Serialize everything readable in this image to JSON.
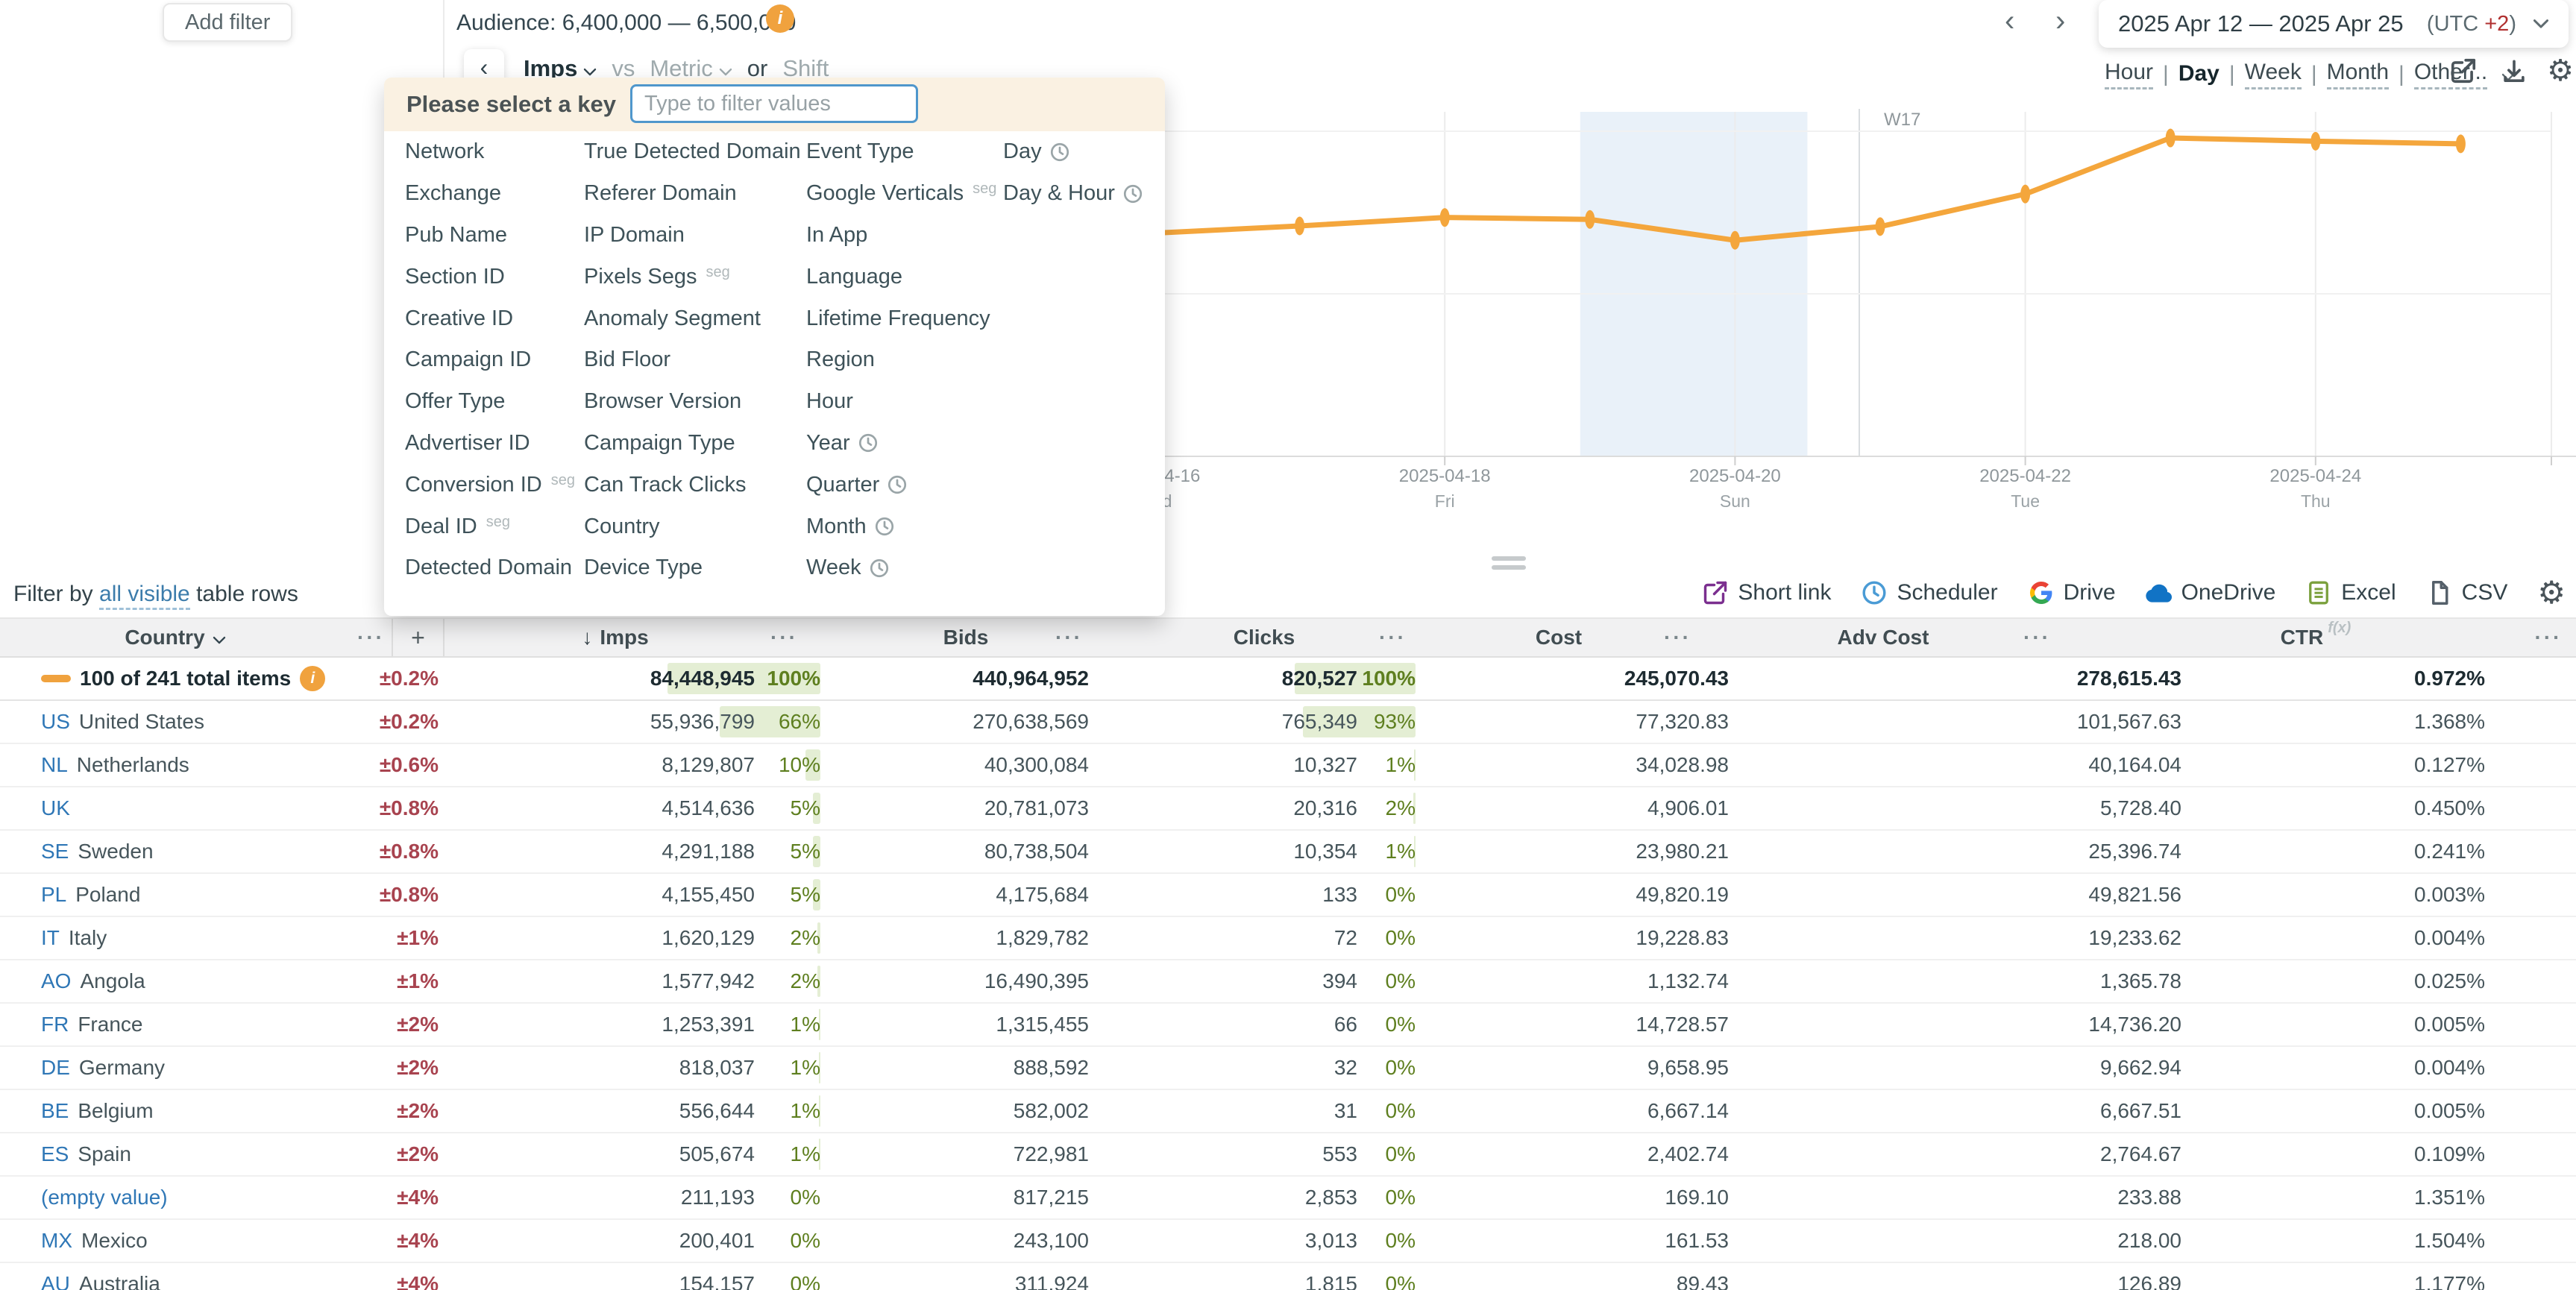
{
  "topbar": {
    "add_filter": "Add filter",
    "audience": "Audience: 6,400,000 — 6,500,000",
    "info_icon": "i",
    "prev": "‹",
    "next": "›",
    "date_range": "2025 Apr 12 — 2025 Apr 25",
    "utc_prefix": "(UTC ",
    "utc_offset": "+2",
    "utc_suffix": ")"
  },
  "controls": {
    "back": "‹",
    "primary_metric": "Imps",
    "vs": "vs",
    "secondary_metric": "Metric",
    "or": "or",
    "shift": "Shift",
    "granularity": {
      "items": [
        "Hour",
        "Day",
        "Week",
        "Month",
        "Other..."
      ],
      "active": "Day"
    }
  },
  "key_picker": {
    "title": "Please select a key",
    "placeholder": "Type to filter values",
    "seg_tag": "seg",
    "columns": [
      [
        {
          "label": "Network"
        },
        {
          "label": "Exchange"
        },
        {
          "label": "Pub Name"
        },
        {
          "label": "Section ID"
        },
        {
          "label": "Creative ID"
        },
        {
          "label": "Campaign ID"
        },
        {
          "label": "Offer Type"
        },
        {
          "label": "Advertiser ID"
        },
        {
          "label": "Conversion ID",
          "seg": true
        },
        {
          "label": "Deal ID",
          "seg": true
        },
        {
          "label": "Detected Domain"
        }
      ],
      [
        {
          "label": "True Detected Domain"
        },
        {
          "label": "Referer Domain"
        },
        {
          "label": "IP Domain"
        },
        {
          "label": "Pixels Segs",
          "seg": true
        },
        {
          "label": "Anomaly Segment"
        },
        {
          "label": "Bid Floor"
        },
        {
          "label": "Browser Version"
        },
        {
          "label": "Campaign Type"
        },
        {
          "label": "Can Track Clicks"
        },
        {
          "label": "Country"
        },
        {
          "label": "Device Type"
        }
      ],
      [
        {
          "label": "Event Type"
        },
        {
          "label": "Google Verticals",
          "seg": true
        },
        {
          "label": "In App"
        },
        {
          "label": "Language"
        },
        {
          "label": "Lifetime Frequency"
        },
        {
          "label": "Region"
        },
        {
          "label": "Hour"
        },
        {
          "label": "Year",
          "clock": true
        },
        {
          "label": "Quarter",
          "clock": true
        },
        {
          "label": "Month",
          "clock": true
        },
        {
          "label": "Week",
          "clock": true
        }
      ],
      [
        {
          "label": "Day",
          "clock": true
        },
        {
          "label": "Day & Hour",
          "clock": true
        }
      ]
    ]
  },
  "chart_data": {
    "type": "line",
    "series": [
      {
        "name": "Imps",
        "values_millions_est": [
          5.47,
          5.58,
          5.71,
          5.68,
          5.36,
          5.57,
          6.07,
          6.93,
          6.88,
          6.84
        ]
      }
    ],
    "x": [
      "2025-04-16",
      "2025-04-17",
      "2025-04-18",
      "2025-04-19",
      "2025-04-20",
      "2025-04-21",
      "2025-04-22",
      "2025-04-23",
      "2025-04-24",
      "2025-04-25"
    ],
    "x_ticks": [
      {
        "date": "2025-04-16",
        "dow": "Wed"
      },
      {
        "date": "2025-04-18",
        "dow": "Fri"
      },
      {
        "date": "2025-04-20",
        "dow": "Sun"
      },
      {
        "date": "2025-04-22",
        "dow": "Tue"
      },
      {
        "date": "2025-04-24",
        "dow": "Thu"
      }
    ],
    "week_annotation": "W17",
    "weekend_band": [
      "2025-04-19",
      "2025-04-20"
    ],
    "ylim_millions": [
      4.5,
      7.5
    ],
    "grid": true,
    "legend": false
  },
  "splitter_handle": "=",
  "filter_row": {
    "prefix": "Filter by",
    "link": "all visible",
    "suffix": "table rows"
  },
  "export_row": {
    "items": [
      {
        "label": "Short link",
        "icon": "external-link-icon",
        "color": "#7b2f8f"
      },
      {
        "label": "Scheduler",
        "icon": "clock-icon",
        "color": "#4a9bd5"
      },
      {
        "label": "Drive",
        "icon": "google-drive-icon",
        "color": "#4285F4"
      },
      {
        "label": "OneDrive",
        "icon": "onedrive-cloud-icon",
        "color": "#1173c5"
      },
      {
        "label": "Excel",
        "icon": "excel-icon",
        "color": "#7aa03c"
      },
      {
        "label": "CSV",
        "icon": "csv-file-icon",
        "color": "#55606a"
      }
    ]
  },
  "table": {
    "headers": {
      "country": "Country",
      "menu": "···",
      "plus": "+",
      "sort": "↓",
      "imps": "Imps",
      "bids": "Bids",
      "clicks": "Clicks",
      "cost": "Cost",
      "adv_cost": "Adv Cost",
      "ctr": "CTR",
      "ctr_sup": "f(x)"
    },
    "rows": [
      {
        "total": true,
        "code": "",
        "name": "100 of 241 total items",
        "err": "±0.2%",
        "imps": "84,448,945",
        "imps_pct": "100%",
        "bids": "440,964,952",
        "clicks": "820,527",
        "clicks_pct": "100%",
        "cost": "245,070.43",
        "adv_cost": "278,615.43",
        "ctr": "0.972%"
      },
      {
        "code": "US",
        "name": "United States",
        "err": "±0.2%",
        "imps": "55,936,799",
        "imps_pct": "66%",
        "bids": "270,638,569",
        "clicks": "765,349",
        "clicks_pct": "93%",
        "cost": "77,320.83",
        "adv_cost": "101,567.63",
        "ctr": "1.368%"
      },
      {
        "code": "NL",
        "name": "Netherlands",
        "err": "±0.6%",
        "imps": "8,129,807",
        "imps_pct": "10%",
        "bids": "40,300,084",
        "clicks": "10,327",
        "clicks_pct": "1%",
        "cost": "34,028.98",
        "adv_cost": "40,164.04",
        "ctr": "0.127%"
      },
      {
        "code": "UK",
        "name": "",
        "err": "±0.8%",
        "imps": "4,514,636",
        "imps_pct": "5%",
        "bids": "20,781,073",
        "clicks": "20,316",
        "clicks_pct": "2%",
        "cost": "4,906.01",
        "adv_cost": "5,728.40",
        "ctr": "0.450%"
      },
      {
        "code": "SE",
        "name": "Sweden",
        "err": "±0.8%",
        "imps": "4,291,188",
        "imps_pct": "5%",
        "bids": "80,738,504",
        "clicks": "10,354",
        "clicks_pct": "1%",
        "cost": "23,980.21",
        "adv_cost": "25,396.74",
        "ctr": "0.241%"
      },
      {
        "code": "PL",
        "name": "Poland",
        "err": "±0.8%",
        "imps": "4,155,450",
        "imps_pct": "5%",
        "bids": "4,175,684",
        "clicks": "133",
        "clicks_pct": "0%",
        "cost": "49,820.19",
        "adv_cost": "49,821.56",
        "ctr": "0.003%"
      },
      {
        "code": "IT",
        "name": "Italy",
        "err": "±1%",
        "imps": "1,620,129",
        "imps_pct": "2%",
        "bids": "1,829,782",
        "clicks": "72",
        "clicks_pct": "0%",
        "cost": "19,228.83",
        "adv_cost": "19,233.62",
        "ctr": "0.004%"
      },
      {
        "code": "AO",
        "name": "Angola",
        "err": "±1%",
        "imps": "1,577,942",
        "imps_pct": "2%",
        "bids": "16,490,395",
        "clicks": "394",
        "clicks_pct": "0%",
        "cost": "1,132.74",
        "adv_cost": "1,365.78",
        "ctr": "0.025%"
      },
      {
        "code": "FR",
        "name": "France",
        "err": "±2%",
        "imps": "1,253,391",
        "imps_pct": "1%",
        "bids": "1,315,455",
        "clicks": "66",
        "clicks_pct": "0%",
        "cost": "14,728.57",
        "adv_cost": "14,736.20",
        "ctr": "0.005%"
      },
      {
        "code": "DE",
        "name": "Germany",
        "err": "±2%",
        "imps": "818,037",
        "imps_pct": "1%",
        "bids": "888,592",
        "clicks": "32",
        "clicks_pct": "0%",
        "cost": "9,658.95",
        "adv_cost": "9,662.94",
        "ctr": "0.004%"
      },
      {
        "code": "BE",
        "name": "Belgium",
        "err": "±2%",
        "imps": "556,644",
        "imps_pct": "1%",
        "bids": "582,002",
        "clicks": "31",
        "clicks_pct": "0%",
        "cost": "6,667.14",
        "adv_cost": "6,667.51",
        "ctr": "0.005%"
      },
      {
        "code": "ES",
        "name": "Spain",
        "err": "±2%",
        "imps": "505,674",
        "imps_pct": "1%",
        "bids": "722,981",
        "clicks": "553",
        "clicks_pct": "0%",
        "cost": "2,402.74",
        "adv_cost": "2,764.67",
        "ctr": "0.109%"
      },
      {
        "code": "",
        "name": "(empty value)",
        "empty": true,
        "err": "±4%",
        "imps": "211,193",
        "imps_pct": "0%",
        "bids": "817,215",
        "clicks": "2,853",
        "clicks_pct": "0%",
        "cost": "169.10",
        "adv_cost": "233.88",
        "ctr": "1.351%"
      },
      {
        "code": "MX",
        "name": "Mexico",
        "err": "±4%",
        "imps": "200,401",
        "imps_pct": "0%",
        "bids": "243,100",
        "clicks": "3,013",
        "clicks_pct": "0%",
        "cost": "161.53",
        "adv_cost": "218.00",
        "ctr": "1.504%"
      },
      {
        "code": "AU",
        "name": "Australia",
        "err": "±4%",
        "imps": "154,157",
        "imps_pct": "0%",
        "bids": "311,924",
        "clicks": "1,815",
        "clicks_pct": "0%",
        "cost": "89.43",
        "adv_cost": "126.89",
        "ctr": "1.177%"
      }
    ]
  },
  "colors": {
    "accent_orange": "#f0a23e",
    "line": "#f4a63c",
    "weekend_band": "#e9f1f9",
    "bar_green": "#e4eed4",
    "pct_green": "#5e7f1f",
    "err_red": "#a8434f",
    "code_blue": "#2f77b6",
    "utc_red": "#b03030",
    "input_border": "#4f97cc",
    "panel_header_beige": "#faf1e2"
  }
}
